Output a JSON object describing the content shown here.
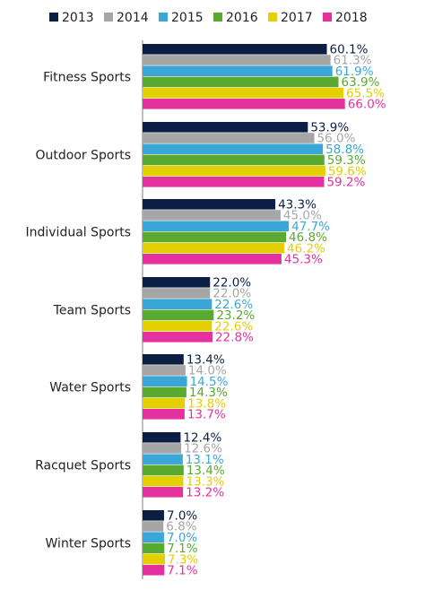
{
  "chart_data": {
    "type": "bar",
    "orientation": "horizontal",
    "categories": [
      "Fitness Sports",
      "Outdoor Sports",
      "Individual Sports",
      "Team Sports",
      "Water Sports",
      "Racquet Sports",
      "Winter Sports"
    ],
    "series": [
      {
        "name": "2013",
        "color": "#0b1f45",
        "values": [
          60.1,
          53.9,
          43.3,
          22.0,
          13.4,
          12.4,
          7.0
        ]
      },
      {
        "name": "2014",
        "color": "#a6a6a6",
        "values": [
          61.3,
          56.0,
          45.0,
          22.0,
          14.0,
          12.6,
          6.8
        ]
      },
      {
        "name": "2015",
        "color": "#3aa7d8",
        "values": [
          61.9,
          58.8,
          47.7,
          22.6,
          14.5,
          13.1,
          7.0
        ]
      },
      {
        "name": "2016",
        "color": "#5aaa32",
        "values": [
          63.9,
          59.3,
          46.8,
          23.2,
          14.3,
          13.4,
          7.1
        ]
      },
      {
        "name": "2017",
        "color": "#e4cf00",
        "values": [
          65.5,
          59.6,
          46.2,
          22.6,
          13.8,
          13.3,
          7.3
        ]
      },
      {
        "name": "2018",
        "color": "#e4319f",
        "values": [
          66.0,
          59.2,
          45.3,
          22.8,
          13.7,
          13.2,
          7.1
        ]
      }
    ],
    "value_suffix": "%",
    "xlim": [
      0,
      100
    ],
    "legend_position": "top",
    "grid": false
  }
}
